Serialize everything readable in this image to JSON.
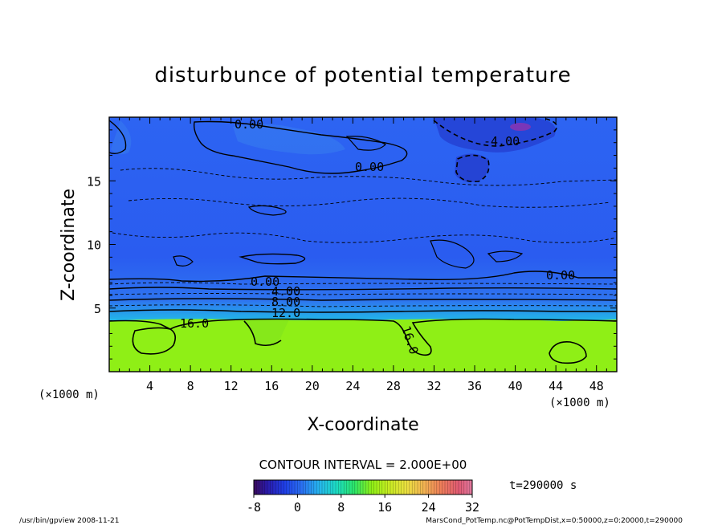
{
  "chart_data": {
    "type": "heatmap",
    "title": "disturbunce of potential temperature",
    "xlabel": "X-coordinate",
    "ylabel": "Z-coordinate",
    "x_unit_left": "(×1000 m)",
    "x_unit_right": "(×1000 m)",
    "xlim": [
      0,
      50
    ],
    "ylim": [
      0,
      20
    ],
    "x_ticks": [
      "4",
      "8",
      "12",
      "16",
      "20",
      "24",
      "28",
      "32",
      "36",
      "40",
      "44",
      "48"
    ],
    "y_ticks": [
      "5",
      "10",
      "15"
    ],
    "contour_interval_text": "CONTOUR INTERVAL = 2.000E+00",
    "contour_labels": [
      "0.00",
      "0.00",
      "0.00",
      "0.00",
      "-4.00",
      "4.00",
      "8.00",
      "12.0",
      "16.0",
      "16.0"
    ],
    "colorbar": {
      "min": -8,
      "max": 32,
      "ticks": [
        "-8",
        "0",
        "8",
        "16",
        "24",
        "32"
      ]
    },
    "time_text": "t=290000 s",
    "footer_left": "/usr/bin/gpview   2008-11-21",
    "footer_right": "MarsCond_PotTemp.nc@PotTempDist,x=0:50000,z=0:20000,t=290000"
  },
  "colors": {
    "upper_blue": "#2a5cf2",
    "mid_blue": "#2f6af0",
    "cyan": "#20d8d8",
    "teal": "#14e6a6",
    "green": "#8fef16",
    "dark_blue": "#2438c8",
    "purple": "#7a36b8"
  }
}
